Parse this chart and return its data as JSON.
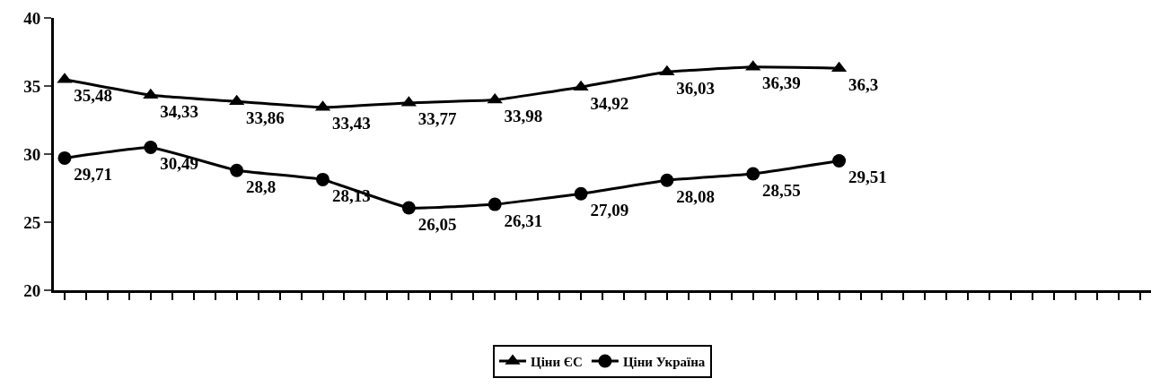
{
  "chart_data": {
    "type": "line",
    "categories": [
      null,
      null,
      null,
      null,
      null,
      null,
      null,
      null,
      null,
      null,
      null,
      null,
      null,
      null,
      null,
      null,
      null,
      null,
      null,
      null,
      null,
      null,
      null,
      null,
      null,
      null,
      null,
      null,
      null,
      null,
      null,
      null,
      null,
      null,
      null,
      null,
      null,
      null,
      null,
      null,
      null,
      null,
      null,
      null,
      null,
      null,
      null,
      null,
      null,
      null,
      null
    ],
    "series": [
      {
        "name": "Ціни ЄС",
        "color": "#000000",
        "marker": "triangle",
        "value_labels": [
          "35,48",
          null,
          null,
          null,
          "34,33",
          null,
          null,
          null,
          "33,86",
          null,
          null,
          null,
          "33,43",
          null,
          null,
          null,
          "33,77",
          null,
          null,
          null,
          "33,98",
          null,
          null,
          null,
          "34,92",
          null,
          null,
          null,
          "36,03",
          null,
          null,
          null,
          "36,39",
          null,
          null,
          null,
          "36,3",
          null,
          null,
          null,
          null,
          null,
          null,
          null,
          null,
          null,
          null,
          null,
          null,
          null,
          null
        ],
        "values": [
          35.48,
          null,
          null,
          null,
          34.33,
          null,
          null,
          null,
          33.86,
          null,
          null,
          null,
          33.43,
          null,
          null,
          null,
          33.77,
          null,
          null,
          null,
          33.98,
          null,
          null,
          null,
          34.92,
          null,
          null,
          null,
          36.03,
          null,
          null,
          null,
          36.39,
          null,
          null,
          null,
          36.3,
          null,
          null,
          null,
          null,
          null,
          null,
          null,
          null,
          null,
          null,
          null,
          null,
          null,
          null
        ]
      },
      {
        "name": "Ціни Україна",
        "color": "#000000",
        "marker": "circle",
        "value_labels": [
          "29,71",
          null,
          null,
          null,
          "30,49",
          null,
          null,
          null,
          "28,8",
          null,
          null,
          null,
          "28,13",
          null,
          null,
          null,
          "26,05",
          null,
          null,
          null,
          "26,31",
          null,
          null,
          null,
          "27,09",
          null,
          null,
          null,
          "28,08",
          null,
          null,
          null,
          "28,55",
          null,
          null,
          null,
          "29,51",
          null,
          null,
          null,
          null,
          null,
          null,
          null,
          null,
          null,
          null,
          null,
          null,
          null,
          null
        ],
        "values": [
          29.71,
          null,
          null,
          null,
          30.49,
          null,
          null,
          null,
          28.8,
          null,
          null,
          null,
          28.13,
          null,
          null,
          null,
          26.05,
          null,
          null,
          null,
          26.31,
          null,
          null,
          null,
          27.09,
          null,
          null,
          null,
          28.08,
          null,
          null,
          null,
          28.55,
          null,
          null,
          null,
          29.51,
          null,
          null,
          null,
          null,
          null,
          null,
          null,
          null,
          null,
          null,
          null,
          null,
          null,
          null
        ]
      }
    ],
    "ylim": [
      20,
      40
    ],
    "yticks": [
      20,
      25,
      30,
      35,
      40
    ],
    "legend": "bottom",
    "line_style": "solid"
  }
}
